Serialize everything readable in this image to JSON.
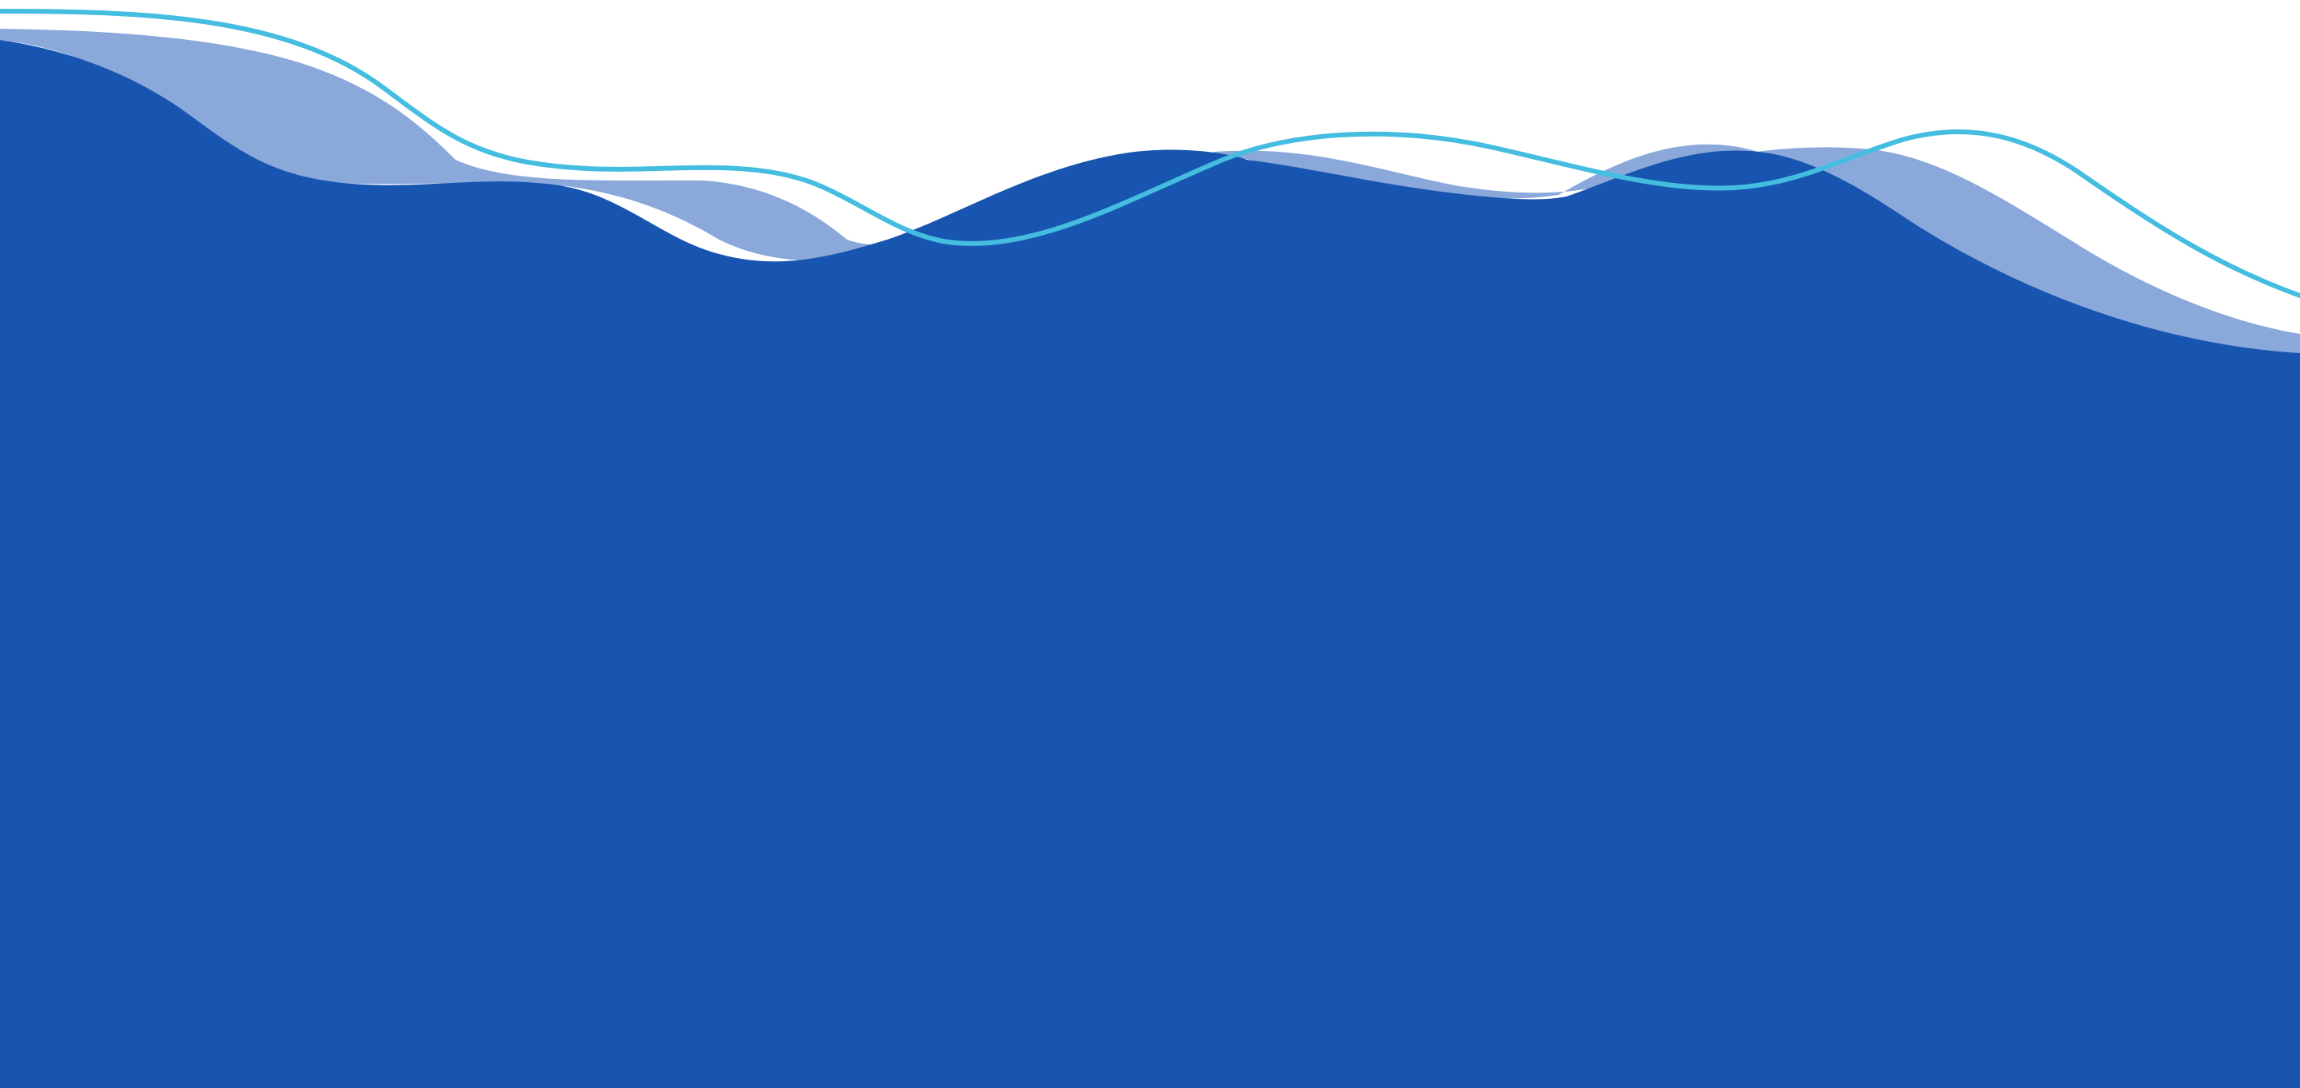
{
  "colors": {
    "background": "#ffffff",
    "wave_main": "#1755b0",
    "wave_light": "#8aa9da",
    "wave_line": "#45bde0"
  },
  "elements": {
    "background": "plain white",
    "waves": [
      "light-blue-wave-band",
      "dark-blue-wave-fill",
      "cyan-wave-line"
    ]
  }
}
